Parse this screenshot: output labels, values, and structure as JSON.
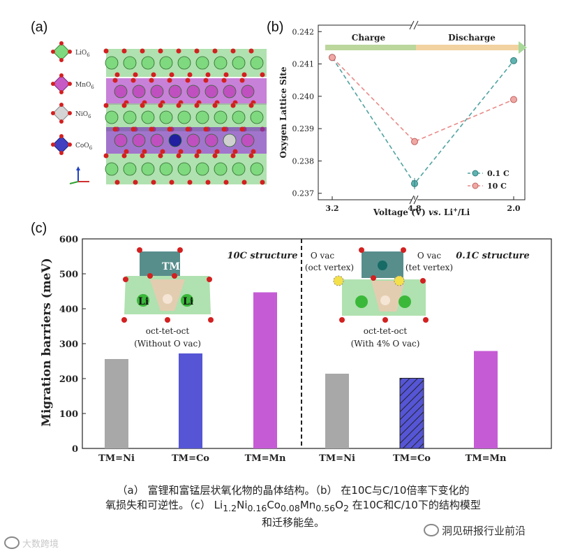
{
  "panel_a": {
    "label": "(a)",
    "legend": [
      {
        "name": "LiO6",
        "text_main": "LiO",
        "text_sub": "6",
        "color": "#7fd97f"
      },
      {
        "name": "MnO6",
        "text_main": "MnO",
        "text_sub": "6",
        "color": "#c65bc6"
      },
      {
        "name": "NiO6",
        "text_main": "NiO",
        "text_sub": "6",
        "color": "#cfcfcf"
      },
      {
        "name": "CoO6",
        "text_main": "CoO",
        "text_sub": "6",
        "color": "#4040c0"
      }
    ]
  },
  "panel_b": {
    "label": "(b)",
    "charge_label": "Charge",
    "discharge_label": "Discharge",
    "ylabel": "Oxygen Lattice Site",
    "xlabel_main": "Voltage (V) ",
    "xlabel_vs": "vs.",
    "xlabel_li": " Li",
    "xlabel_sup": "+",
    "xlabel_end": "/Li",
    "legend_01c": "0.1 C",
    "legend_10c": "10 C"
  },
  "panel_c": {
    "label": "(c)",
    "ylabel": "Migration barriers (meV)",
    "title_10c": "10C structure",
    "title_01c": "0.1C structure",
    "left_model": {
      "tm_label": "TM",
      "li_label_left": "Li",
      "li_label_right": "Li",
      "path_label": "oct-tet-oct",
      "condition": "(Without O vac)"
    },
    "right_model": {
      "ovac_left_line1": "O vac",
      "ovac_left_line2": "(oct vertex)",
      "ovac_right_line1": "O vac",
      "ovac_right_line2": "(tet vertex)",
      "path_label": "oct-tet-oct",
      "condition": "(With 4% O vac)"
    }
  },
  "chart_data": [
    {
      "type": "line",
      "panel": "b",
      "x": [
        3.2,
        4.8,
        2.0
      ],
      "xticklabels": [
        "3.2",
        "4.8",
        "2.0"
      ],
      "series": [
        {
          "name": "0.1 C",
          "values": [
            0.2412,
            0.2373,
            0.2411
          ],
          "color": "#4fa3a0"
        },
        {
          "name": "10 C",
          "values": [
            0.2412,
            0.2386,
            0.2399
          ],
          "color": "#e88a88"
        }
      ],
      "ylabel": "Oxygen Lattice Site",
      "xlabel": "Voltage (V) vs. Li+/Li",
      "ylim": [
        0.2368,
        0.2422
      ],
      "yticks": [
        "0.237",
        "0.238",
        "0.239",
        "0.240",
        "0.241",
        "0.242"
      ]
    },
    {
      "type": "bar",
      "panel": "c",
      "categories": [
        "TM=Ni",
        "TM=Co",
        "TM=Mn",
        "TM=Ni",
        "TM=Co",
        "TM=Mn"
      ],
      "groups": [
        "10C structure",
        "0.1C structure"
      ],
      "values": [
        256,
        272,
        447,
        214,
        201,
        279
      ],
      "colors": [
        "#a8a8a8",
        "#5555d6",
        "#c65bd6",
        "#a8a8a8",
        "#5555d6",
        "#c65bd6"
      ],
      "ylabel": "Migration barriers (meV)",
      "ylim": [
        0,
        600
      ],
      "yticks": [
        "0",
        "100",
        "200",
        "300",
        "400",
        "500",
        "600"
      ]
    }
  ],
  "caption": {
    "line1": "（a） 富锂和富锰层状氧化物的晶体结构。（b） 在10C与C/10倍率下变化的",
    "line2_pre": "氧损失和可逆性。（c） Li",
    "sub1": "1.2",
    "mid1": "Ni",
    "sub2": "0.16",
    "mid2": "Co",
    "sub3": "0.08",
    "mid3": "Mn",
    "sub4": "0.56",
    "mid4": "O",
    "sub5": "2",
    "line2_post": " 在10C和C/10下的结构模型",
    "line3": "和迁移能垒。"
  },
  "watermark_left": "大数跨境",
  "watermark_right": "洞见研报行业前沿"
}
